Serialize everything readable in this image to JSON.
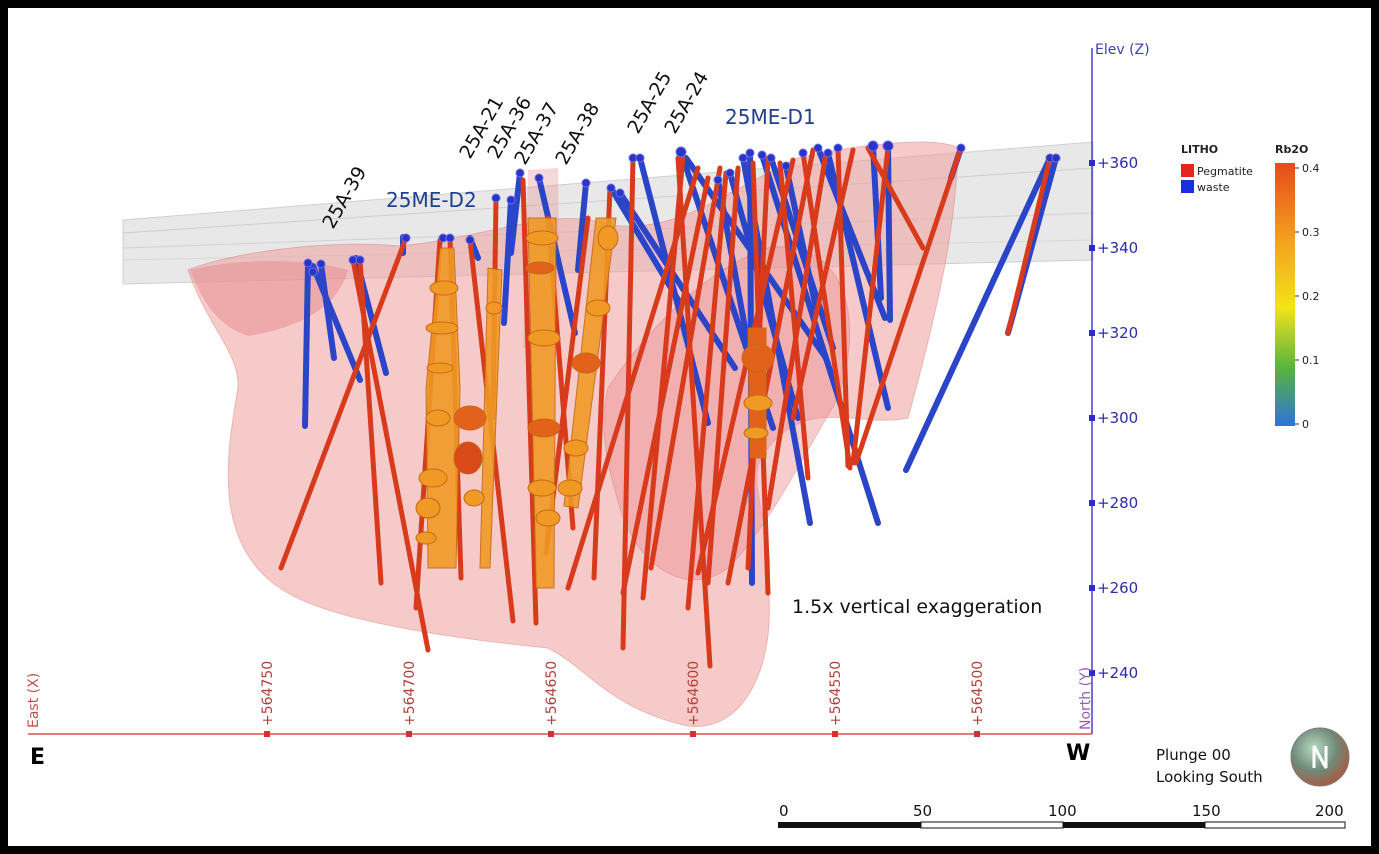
{
  "view": {
    "elevation_axis": {
      "title": "Elev (Z)",
      "ticks": [
        "+360",
        "+340",
        "+320",
        "+300",
        "+280",
        "+260",
        "+240"
      ]
    },
    "easting_axis": {
      "title": "East (X)",
      "ticks": [
        "+564750",
        "+564700",
        "+564650",
        "+564600",
        "+564550",
        "+564500"
      ]
    },
    "north_axis_title": "North (Y)",
    "left_direction": "E",
    "right_direction": "W",
    "drill_hole_labels": [
      "25A-39",
      "25A-21",
      "25A-36",
      "25A-37",
      "25A-38",
      "25A-25",
      "25A-24"
    ],
    "domain_labels": {
      "d1": "25ME-D1",
      "d2": "25ME-D2"
    },
    "exaggeration_note": "1.5x vertical exaggeration",
    "view_orientation": {
      "plunge": "Plunge 00",
      "looking": "Looking South"
    },
    "compass_icon": "north-arrow-globe-icon"
  },
  "legend": {
    "litho_title": "LITHO",
    "litho_items": [
      {
        "label": "Pegmatite",
        "color": "#e8231b"
      },
      {
        "label": "waste",
        "color": "#1a2ee0"
      }
    ],
    "rb2o_title": "Rb2O",
    "rb2o_ticks": [
      "0.4",
      "0.3",
      "0.2",
      "0.1",
      "0"
    ],
    "rb2o_gradient": [
      "#e84a1a",
      "#f4a21c",
      "#f3e21a",
      "#56b53d",
      "#2f73d8"
    ]
  },
  "scale_bar": {
    "ticks": [
      "0",
      "50",
      "100",
      "150",
      "200"
    ]
  },
  "colors": {
    "pegmatite": "#d83a1c",
    "waste": "#2a45c8",
    "high_grade": "#f09a25",
    "domain_fill": "#f3a8a8",
    "elevation_axis": "#4a3fc8",
    "easting_axis": "#d8504a"
  }
}
